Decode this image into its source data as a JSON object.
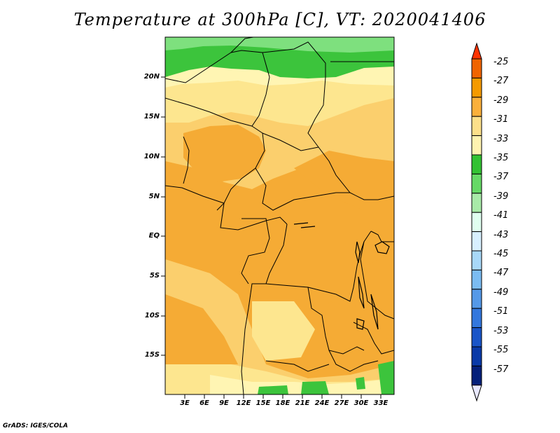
{
  "title": "Temperature at 300hPa [C], VT: 2020041406",
  "footer": "GrADS: IGES/COLA",
  "lat_labels": [
    "20N",
    "15N",
    "10N",
    "5N",
    "EQ",
    "5S",
    "10S",
    "15S"
  ],
  "lon_labels": [
    "3E",
    "6E",
    "9E",
    "12E",
    "15E",
    "18E",
    "21E",
    "24E",
    "27E",
    "30E",
    "33E"
  ],
  "colorbar": {
    "labels": [
      "-25",
      "-27",
      "-29",
      "-31",
      "-33",
      "-35",
      "-37",
      "-39",
      "-41",
      "-43",
      "-45",
      "-47",
      "-49",
      "-51",
      "-53",
      "-55",
      "-57"
    ],
    "colors": [
      "#ff3300",
      "#f06400",
      "#f59a00",
      "#fbb03b",
      "#fde08a",
      "#fff3b0",
      "#33c233",
      "#66d966",
      "#a8eaa8",
      "#e0fff0",
      "#d8f0ff",
      "#a8d8f8",
      "#7bbcf2",
      "#5599e8",
      "#3377dd",
      "#1a55c8",
      "#0a3aa8",
      "#05207a",
      "#e8e8ff"
    ]
  },
  "palette": {
    "orange_dark": "#f5ab35",
    "orange_light": "#fbcf6d",
    "yellow": "#fde68f",
    "pale_yellow": "#fff5b3",
    "green_dark": "#3cc43c",
    "green_light": "#7ee07e"
  }
}
